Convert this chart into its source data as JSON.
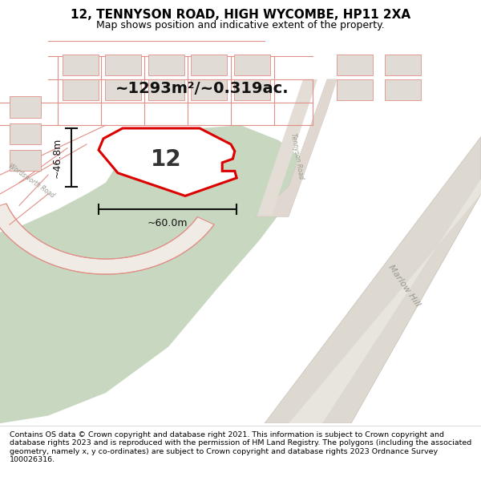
{
  "title": "12, TENNYSON ROAD, HIGH WYCOMBE, HP11 2XA",
  "subtitle": "Map shows position and indicative extent of the property.",
  "footer": "Contains OS data © Crown copyright and database right 2021. This information is subject to Crown copyright and database rights 2023 and is reproduced with the permission of HM Land Registry. The polygons (including the associated geometry, namely x, y co-ordinates) are subject to Crown copyright and database rights 2023 Ordnance Survey 100026316.",
  "area_label": "~1293m²/~0.319ac.",
  "width_label": "~60.0m",
  "height_label": "~46.8m",
  "property_number": "12",
  "map_bg": "#f0ebe4",
  "green_color": "#c8d8c0",
  "road_fill": "#e8e0d8",
  "road_line_color": "#e09088",
  "building_fill": "#e0dbd4",
  "building_edge": "#e09088",
  "property_fill": "#ffffff",
  "property_edge": "#dd0000",
  "dim_color": "#111111",
  "title_fontsize": 11,
  "subtitle_fontsize": 9,
  "footer_fontsize": 6.8,
  "road_label_color": "#999990",
  "road_label_size": 7
}
